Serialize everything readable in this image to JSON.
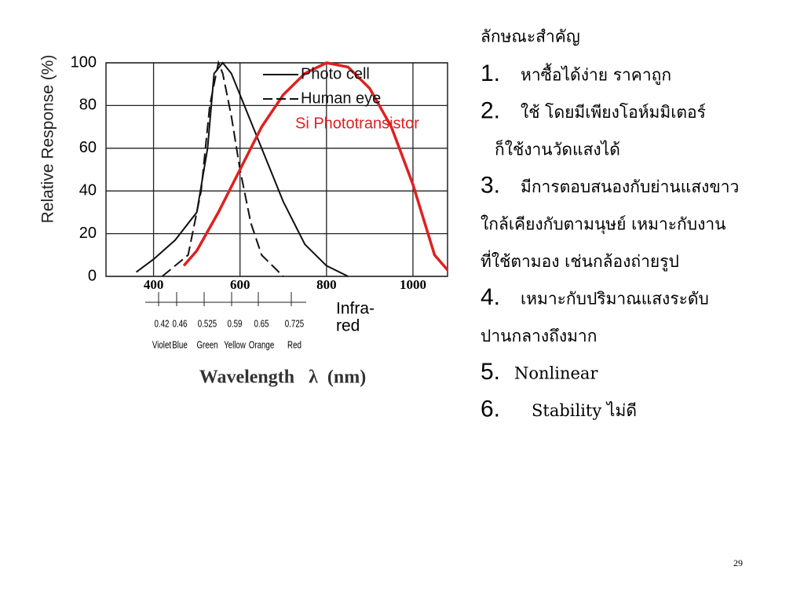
{
  "chart_data": {
    "type": "line",
    "ylabel": "Relative Response (%)",
    "xlabel": "Wavelength   λ  (nm)",
    "annotation": "Infra-\nred",
    "xlim": [
      290,
      1080
    ],
    "xticks": [
      400,
      600,
      800,
      1000
    ],
    "ylim": [
      0,
      100
    ],
    "yticks": [
      0,
      20,
      40,
      60,
      80,
      100
    ],
    "grid": true,
    "bands": [
      {
        "micron": "0.42",
        "name": "Violet"
      },
      {
        "micron": "0.46",
        "name": "Blue"
      },
      {
        "micron": "0.525",
        "name": "Green"
      },
      {
        "micron": "0.59",
        "name": "Yellow"
      },
      {
        "micron": "0.65",
        "name": "Orange"
      },
      {
        "micron": "0.725",
        "name": "Red"
      }
    ],
    "series": [
      {
        "name": "Photo cell",
        "color": "#111111",
        "dash": "solid",
        "x": [
          360,
          400,
          450,
          500,
          525,
          540,
          560,
          580,
          600,
          650,
          700,
          750,
          800,
          850
        ],
        "values": [
          2,
          8,
          17,
          30,
          60,
          95,
          100,
          95,
          85,
          60,
          35,
          15,
          5,
          0
        ]
      },
      {
        "name": "Human eye",
        "color": "#111111",
        "dash": "dashed",
        "x": [
          420,
          480,
          510,
          530,
          550,
          560,
          580,
          600,
          625,
          650,
          700
        ],
        "values": [
          0,
          10,
          40,
          80,
          100,
          95,
          75,
          50,
          25,
          10,
          0
        ]
      },
      {
        "name": "Si Phototransistor",
        "color": "#e02020",
        "dash": "solid",
        "x": [
          470,
          500,
          550,
          600,
          650,
          700,
          750,
          800,
          850,
          900,
          950,
          1000,
          1050,
          1080
        ],
        "values": [
          5,
          12,
          30,
          50,
          70,
          85,
          95,
          100,
          98,
          88,
          70,
          43,
          10,
          3
        ]
      }
    ]
  },
  "slide": {
    "heading": "ลักษณะสำคัญ",
    "items": [
      {
        "number": "1.",
        "lines": [
          "หาซื้อได้ง่าย ราคาถูก"
        ]
      },
      {
        "number": "2.",
        "lines": [
          "ใช้  โดยมีเพียงโอห์มมิเตอร์",
          "ก็ใช้งานวัดแสงได้"
        ]
      },
      {
        "number": "3.",
        "lines": [
          "มีการตอบสนองกับย่านแสงขาว",
          "ใกล้เคียงกับตามนุษย์ เหมาะกับงาน",
          "ที่ใช้ตามอง เช่นกล้องถ่ายรูป"
        ]
      },
      {
        "number": "4.",
        "lines": [
          "เหมาะกับปริมาณแสงระดับ",
          "ปานกลางถึงมาก"
        ]
      },
      {
        "number": "5.",
        "lines": [
          "Nonlinear"
        ]
      },
      {
        "number": "6.",
        "lines": [
          "Stability   ไม่ดี"
        ]
      }
    ],
    "page_number": "29"
  }
}
